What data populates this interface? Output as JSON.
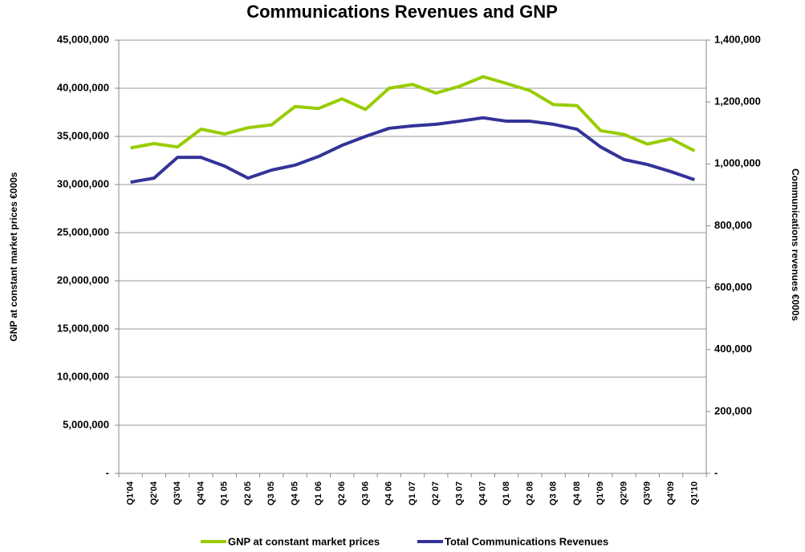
{
  "chart_data": {
    "type": "line",
    "title": "Communications Revenues and GNP",
    "y_label": "GNP at constant market prices €000s",
    "y2_label": "Communications revenues €000s",
    "categories": [
      "Q1'04",
      "Q2'04",
      "Q3'04",
      "Q4'04",
      "Q1 05",
      "Q2 05",
      "Q3 05",
      "Q4 05",
      "Q1 06",
      "Q2 06",
      "Q3 06",
      "Q4 06",
      "Q1 07",
      "Q2 07",
      "Q3 07",
      "Q4 07",
      "Q1 08",
      "Q2 08",
      "Q3 08",
      "Q4 08",
      "Q1'09",
      "Q2'09",
      "Q3'09",
      "Q4'09",
      "Q1'10"
    ],
    "series": [
      {
        "name": "GNP at constant market prices",
        "color": "#99cc00",
        "axis": "y",
        "values": [
          33800000,
          34250000,
          33900000,
          35750000,
          35250000,
          35900000,
          36200000,
          38100000,
          37900000,
          38900000,
          37800000,
          40000000,
          40400000,
          39500000,
          40200000,
          41200000,
          40500000,
          39750000,
          38300000,
          38200000,
          35600000,
          35200000,
          34200000,
          34750000,
          33500000
        ]
      },
      {
        "name": "Total Communications Revenues",
        "color": "#333399",
        "axis": "y2",
        "values": [
          941000,
          954000,
          1021000,
          1021000,
          993000,
          954000,
          980000,
          996000,
          1024000,
          1060000,
          1089000,
          1115000,
          1123000,
          1128000,
          1138000,
          1149000,
          1138000,
          1138000,
          1128000,
          1112000,
          1055000,
          1014000,
          998000,
          975000,
          949000
        ]
      }
    ],
    "ylim": [
      0,
      45000000
    ],
    "yticks": [
      {
        "value": 0,
        "label": "-"
      },
      {
        "value": 5000000,
        "label": "5,000,000"
      },
      {
        "value": 10000000,
        "label": "10,000,000"
      },
      {
        "value": 15000000,
        "label": "15,000,000"
      },
      {
        "value": 20000000,
        "label": "20,000,000"
      },
      {
        "value": 25000000,
        "label": "25,000,000"
      },
      {
        "value": 30000000,
        "label": "30,000,000"
      },
      {
        "value": 35000000,
        "label": "35,000,000"
      },
      {
        "value": 40000000,
        "label": "40,000,000"
      },
      {
        "value": 45000000,
        "label": "45,000,000"
      }
    ],
    "y2lim": [
      0,
      1400000
    ],
    "y2ticks": [
      {
        "value": 0,
        "label": "-"
      },
      {
        "value": 200000,
        "label": "200,000"
      },
      {
        "value": 400000,
        "label": "400,000"
      },
      {
        "value": 600000,
        "label": "600,000"
      },
      {
        "value": 800000,
        "label": "800,000"
      },
      {
        "value": 1000000,
        "label": "1,000,000"
      },
      {
        "value": 1200000,
        "label": "1,200,000"
      },
      {
        "value": 1400000,
        "label": "1,400,000"
      }
    ],
    "grid": true,
    "legend": "bottom"
  }
}
